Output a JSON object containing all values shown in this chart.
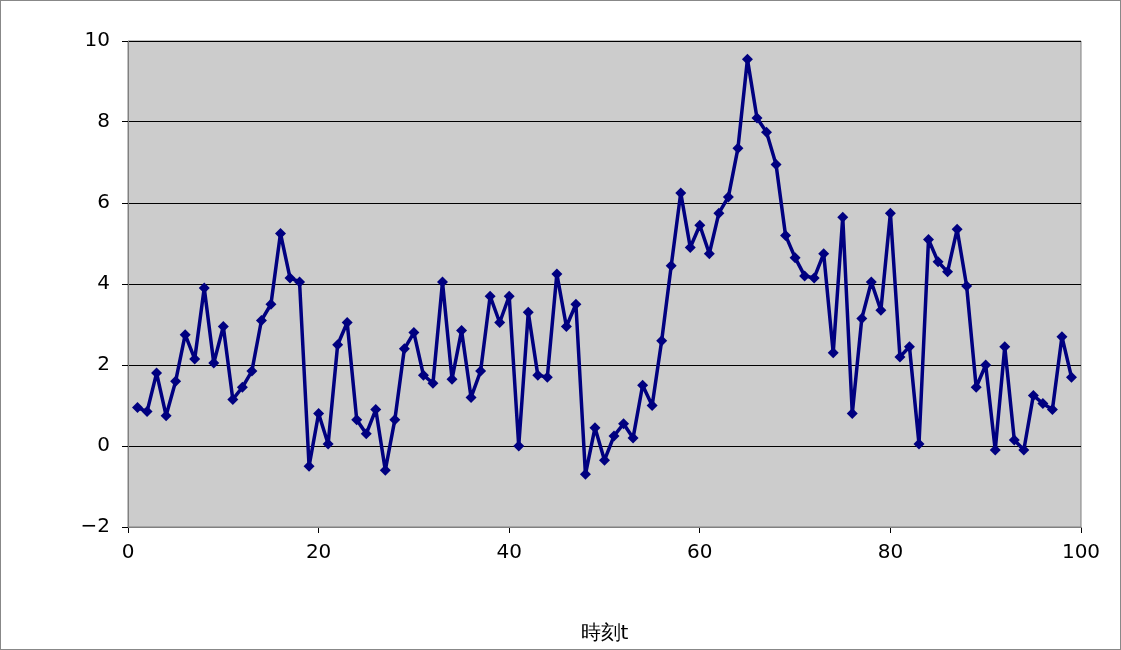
{
  "chart_data": {
    "type": "line",
    "xlabel": "時刻t",
    "x": [
      1,
      2,
      3,
      4,
      5,
      6,
      7,
      8,
      9,
      10,
      11,
      12,
      13,
      14,
      15,
      16,
      17,
      18,
      19,
      20,
      21,
      22,
      23,
      24,
      25,
      26,
      27,
      28,
      29,
      30,
      31,
      32,
      33,
      34,
      35,
      36,
      37,
      38,
      39,
      40,
      41,
      42,
      43,
      44,
      45,
      46,
      47,
      48,
      49,
      50,
      51,
      52,
      53,
      54,
      55,
      56,
      57,
      58,
      59,
      60,
      61,
      62,
      63,
      64,
      65,
      66,
      67,
      68,
      69,
      70,
      71,
      72,
      73,
      74,
      75,
      76,
      77,
      78,
      79,
      80,
      81,
      82,
      83,
      84,
      85,
      86,
      87,
      88,
      89,
      90,
      91,
      92,
      93,
      94,
      95,
      96,
      97,
      98,
      99
    ],
    "series": [
      {
        "color": "#000080",
        "values": [
          0.95,
          0.85,
          1.8,
          0.75,
          1.6,
          2.75,
          2.15,
          3.9,
          2.05,
          2.95,
          1.15,
          1.45,
          1.85,
          3.1,
          3.5,
          5.25,
          4.15,
          4.05,
          -0.5,
          0.8,
          0.05,
          2.5,
          3.05,
          0.65,
          0.3,
          0.9,
          -0.6,
          0.65,
          2.4,
          2.8,
          1.75,
          1.55,
          4.05,
          1.65,
          2.85,
          1.2,
          1.85,
          3.7,
          3.05,
          3.7,
          0,
          3.3,
          1.75,
          1.7,
          4.25,
          2.95,
          3.5,
          -0.7,
          0.45,
          -0.35,
          0.25,
          0.55,
          0.2,
          1.5,
          1.0,
          2.6,
          4.45,
          6.25,
          4.9,
          5.45,
          4.75,
          5.75,
          6.15,
          7.35,
          9.55,
          8.1,
          7.75,
          6.95,
          5.2,
          4.65,
          4.2,
          4.15,
          4.75,
          2.3,
          5.65,
          0.8,
          3.15,
          4.05,
          3.35,
          5.75,
          2.2,
          2.45,
          0.05,
          5.1,
          4.55,
          4.3,
          5.35,
          3.95,
          1.45,
          2.0,
          -0.1,
          2.45,
          0.15,
          -0.1,
          1.25,
          1.05,
          0.9,
          2.7,
          1.7
        ]
      }
    ],
    "xlim": [
      0,
      100
    ],
    "xticks": [
      0,
      20,
      40,
      60,
      80,
      100
    ],
    "ylim": [
      -2,
      10
    ],
    "yticks": [
      {
        "value": -2,
        "label": "−2"
      },
      0,
      2,
      4,
      6,
      8,
      10
    ],
    "grid": "y",
    "legend": false,
    "marker": "diamond",
    "line_style": "solid"
  }
}
